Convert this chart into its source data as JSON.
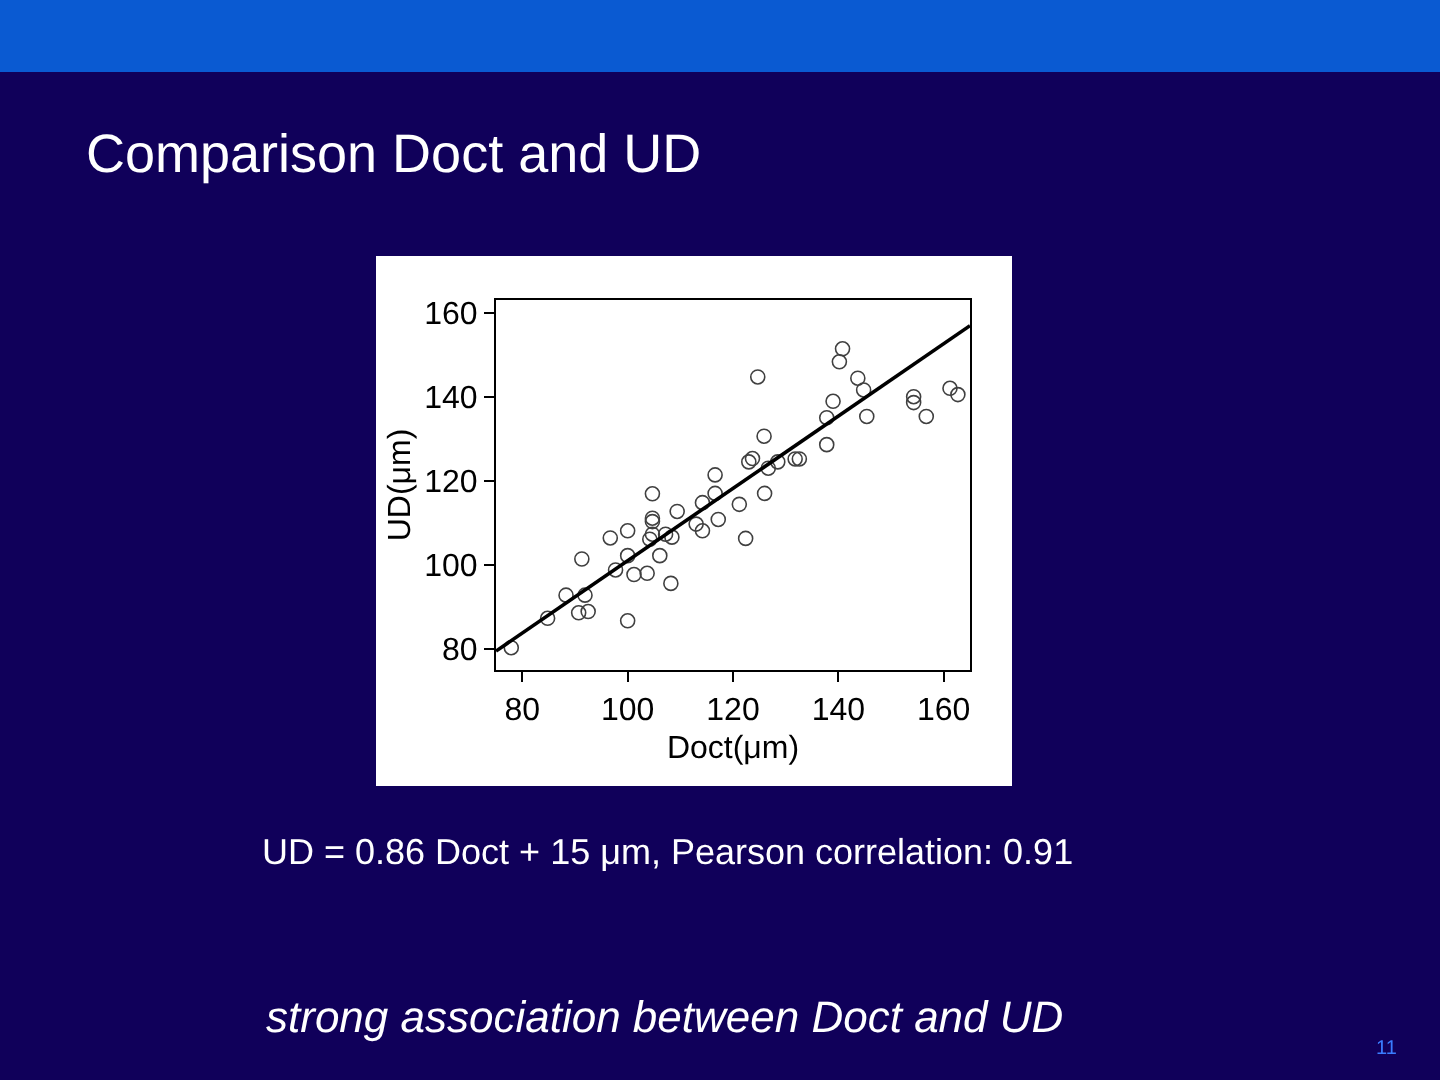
{
  "chart_data": {
    "type": "scatter",
    "title": "Comparison Doct and UD",
    "xlabel": "Doct(μm)",
    "ylabel": "UD(μm)",
    "xlim": [
      75,
      165
    ],
    "ylim": [
      75,
      163
    ],
    "xticks": [
      80,
      100,
      120,
      140,
      160
    ],
    "yticks": [
      80,
      100,
      120,
      140,
      160
    ],
    "grid": false,
    "marker": "circle",
    "series": [
      {
        "type": "scatter",
        "color": "#404040",
        "x": [
          77.9,
          84.8,
          88.3,
          90.7,
          92.5,
          91.9,
          91.3,
          96.7,
          97.7,
          100,
          100,
          100,
          101.2,
          103.7,
          104.7,
          104.7,
          104.7,
          104.7,
          104.2,
          106.1,
          107.2,
          108.4,
          108.2,
          109.4,
          113,
          114.2,
          114.2,
          116.6,
          116.6,
          117.2,
          121.2,
          122.4,
          123,
          123.7,
          124.7,
          125.9,
          126,
          126.7,
          128.5,
          131.8,
          132.6,
          137.8,
          137.8,
          139,
          140.2,
          140.8,
          143.7,
          144.8,
          145.4,
          154.3,
          154.3,
          156.7,
          161.2,
          162.7
        ],
        "values": [
          80.3,
          87.3,
          92.8,
          88.6,
          88.9,
          92.8,
          101.4,
          106.4,
          98.8,
          108.1,
          102.2,
          86.7,
          97.7,
          98,
          116.9,
          111.1,
          110.3,
          107.3,
          106.1,
          102.2,
          107.3,
          106.6,
          95.6,
          112.7,
          109.7,
          108.1,
          114.8,
          121.4,
          117,
          110.8,
          114.4,
          106.3,
          124.5,
          125.3,
          144.7,
          130.6,
          117,
          123,
          124.5,
          125.2,
          125.2,
          128.6,
          135,
          138.9,
          148.3,
          151.4,
          144.4,
          141.6,
          135.3,
          140,
          138.6,
          135.3,
          142,
          140.5
        ]
      },
      {
        "type": "line",
        "color": "#000000",
        "marker": "none",
        "x": [
          75,
          165
        ],
        "values": [
          79.5,
          156.9
        ]
      }
    ],
    "annotations": [
      "UD = 0.86 Doct + 15 μm, Pearson correlation: 0.91",
      "strong association between Doct and UD",
      "11"
    ]
  }
}
